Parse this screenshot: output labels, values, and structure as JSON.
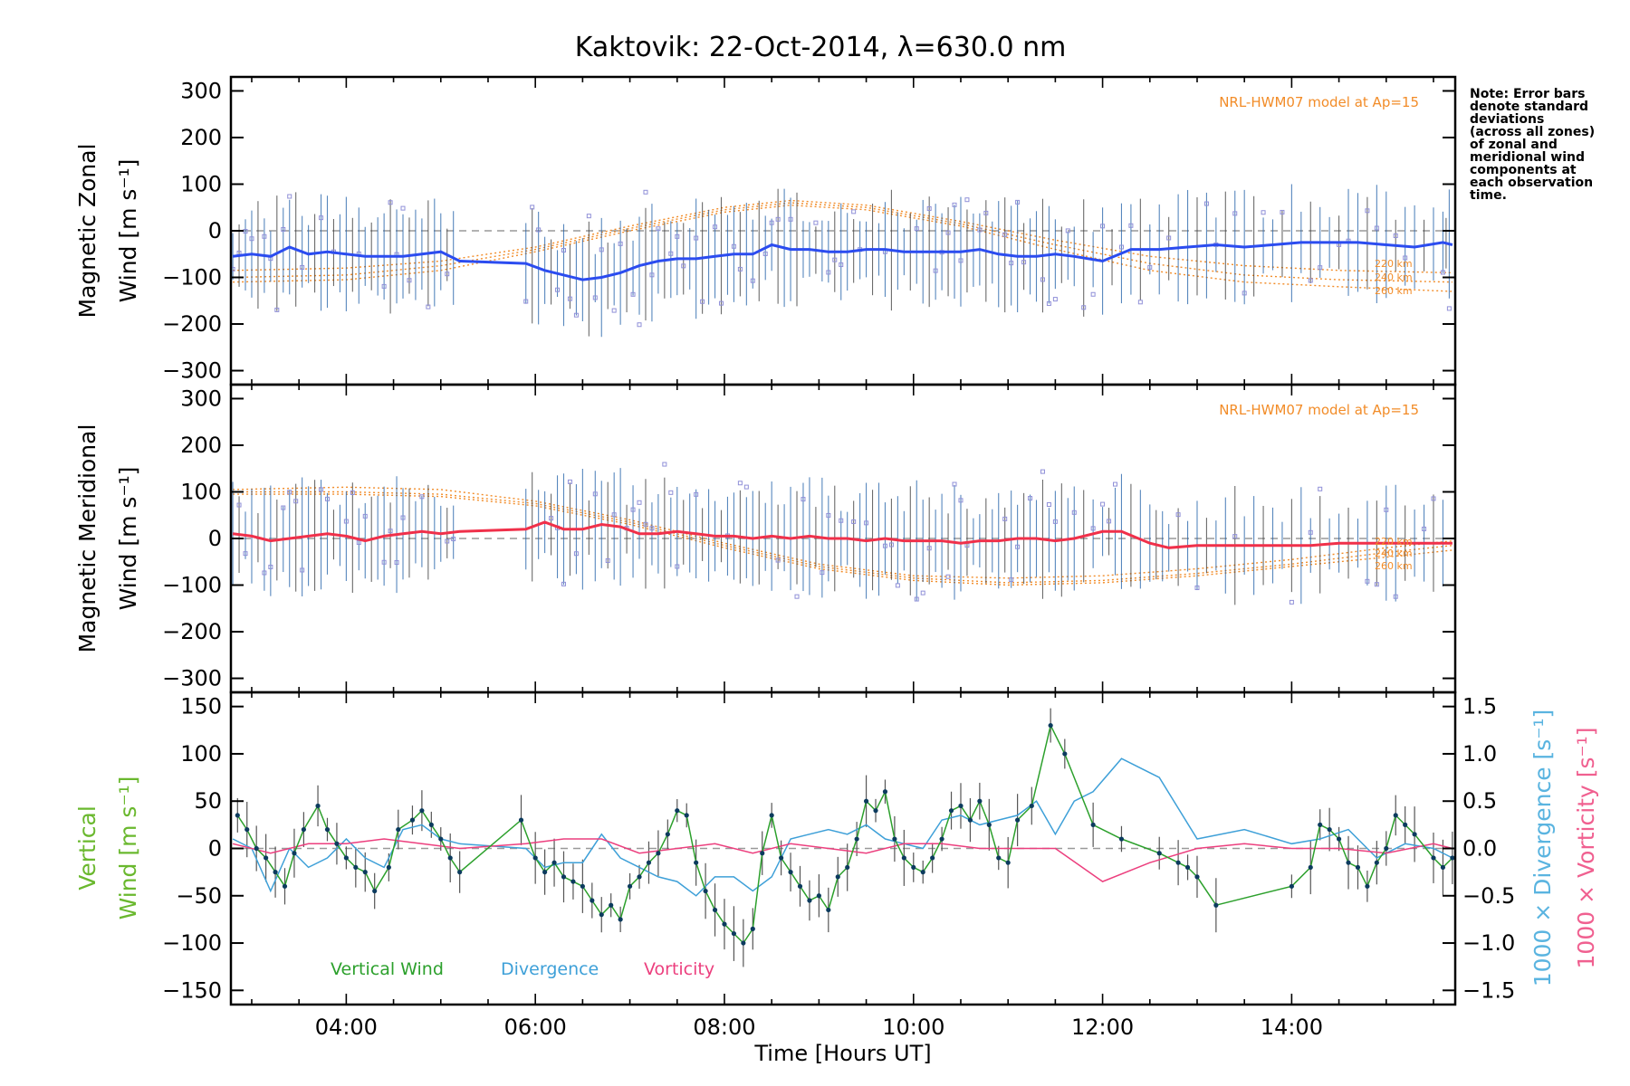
{
  "title": "Kaktovik: 22-Oct-2014, λ=630.0 nm",
  "note": [
    "Note: Error bars",
    "denote standard",
    "deviations",
    "(across all zones)",
    "of zonal and",
    "meridional wind",
    "components at",
    "each observation",
    "time."
  ],
  "model_label": "NRL-HWM07 model at Ap=15",
  "alt_labels": [
    "220 km",
    "240 km",
    "260 km"
  ],
  "xlabel": "Time [Hours UT]",
  "x_ticks": [
    "04:00",
    "06:00",
    "08:00",
    "10:00",
    "12:00",
    "14:00"
  ],
  "colors": {
    "zonal": "#2b4cf0",
    "meridional": "#f0304a",
    "vertical": "#2ca02c",
    "divergence": "#3ea0d8",
    "vorticity": "#ec3f7e",
    "model": "#f28c28",
    "scatter": "#9090d8",
    "axis_vertical": "#6ab82e",
    "axis_divergence": "#5ab4e0",
    "axis_vorticity": "#f06090"
  },
  "chart_data": [
    {
      "type": "line",
      "panel": "zonal",
      "ylabel": [
        "Magnetic Zonal",
        "Wind [m s⁻¹]"
      ],
      "ylim": [
        -330,
        330
      ],
      "xlim_hours": [
        2.78,
        15.73
      ],
      "y_ticks": [
        "300",
        "200",
        "100",
        "0",
        "−100",
        "−200",
        "−300"
      ],
      "y_tick_values": [
        300,
        200,
        100,
        0,
        -100,
        -200,
        -300
      ],
      "series": [
        {
          "name": "",
          "x": [
            2.8,
            3.0,
            3.2,
            3.4,
            3.6,
            3.8,
            4.0,
            4.2,
            4.4,
            4.6,
            4.8,
            5.0,
            5.2,
            5.9,
            6.1,
            6.3,
            6.5,
            6.7,
            6.9,
            7.1,
            7.3,
            7.5,
            7.7,
            7.9,
            8.1,
            8.3,
            8.5,
            8.7,
            8.9,
            9.1,
            9.3,
            9.5,
            9.7,
            9.9,
            10.1,
            10.3,
            10.5,
            10.7,
            10.9,
            11.1,
            11.3,
            11.5,
            11.7,
            12.0,
            12.3,
            12.6,
            12.9,
            13.2,
            13.5,
            13.8,
            14.1,
            14.4,
            14.7,
            15.0,
            15.3,
            15.6,
            15.7
          ],
          "y": [
            -55,
            -50,
            -55,
            -35,
            -50,
            -45,
            -50,
            -55,
            -55,
            -55,
            -50,
            -45,
            -65,
            -70,
            -85,
            -95,
            -105,
            -100,
            -90,
            -75,
            -65,
            -60,
            -60,
            -55,
            -50,
            -50,
            -30,
            -40,
            -40,
            -45,
            -45,
            -40,
            -40,
            -45,
            -45,
            -45,
            -45,
            -40,
            -50,
            -55,
            -55,
            -50,
            -55,
            -65,
            -40,
            -40,
            -35,
            -30,
            -35,
            -30,
            -25,
            -25,
            -25,
            -30,
            -35,
            -25,
            -30
          ]
        }
      ],
      "model_curves": [
        {
          "name": "220 km",
          "x": [
            2.8,
            4.0,
            5.0,
            6.0,
            7.0,
            8.0,
            8.7,
            9.5,
            10.5,
            11.5,
            12.5,
            13.5,
            14.5,
            15.7
          ],
          "y": [
            -85,
            -80,
            -65,
            -35,
            10,
            50,
            65,
            55,
            20,
            -20,
            -55,
            -75,
            -85,
            -90
          ]
        },
        {
          "name": "240 km",
          "x": [
            2.8,
            4.0,
            5.0,
            6.0,
            7.0,
            8.0,
            8.7,
            9.5,
            10.5,
            11.5,
            12.5,
            13.5,
            14.5,
            15.7
          ],
          "y": [
            -100,
            -95,
            -75,
            -40,
            5,
            45,
            60,
            50,
            15,
            -30,
            -70,
            -95,
            -105,
            -110
          ]
        },
        {
          "name": "260 km",
          "x": [
            2.8,
            4.0,
            5.0,
            6.0,
            7.0,
            8.0,
            8.7,
            9.5,
            10.5,
            11.5,
            12.5,
            13.5,
            14.5,
            15.7
          ],
          "y": [
            -110,
            -105,
            -85,
            -45,
            0,
            40,
            55,
            45,
            10,
            -40,
            -85,
            -110,
            -120,
            -130
          ]
        }
      ]
    },
    {
      "type": "line",
      "panel": "meridional",
      "ylabel": [
        "Magnetic Meridional",
        "Wind [m s⁻¹]"
      ],
      "ylim": [
        -330,
        330
      ],
      "xlim_hours": [
        2.78,
        15.73
      ],
      "y_ticks": [
        "300",
        "200",
        "100",
        "0",
        "−100",
        "−200",
        "−300"
      ],
      "y_tick_values": [
        300,
        200,
        100,
        0,
        -100,
        -200,
        -300
      ],
      "series": [
        {
          "name": "",
          "x": [
            2.8,
            3.0,
            3.2,
            3.4,
            3.6,
            3.8,
            4.0,
            4.2,
            4.4,
            4.6,
            4.8,
            5.0,
            5.2,
            5.9,
            6.1,
            6.3,
            6.5,
            6.7,
            6.9,
            7.1,
            7.3,
            7.5,
            7.7,
            7.9,
            8.1,
            8.3,
            8.5,
            8.7,
            8.9,
            9.1,
            9.3,
            9.5,
            9.7,
            9.9,
            10.1,
            10.3,
            10.5,
            10.7,
            10.9,
            11.1,
            11.3,
            11.5,
            11.7,
            12.0,
            12.2,
            12.5,
            12.7,
            13.0,
            13.3,
            13.6,
            13.9,
            14.2,
            14.5,
            14.8,
            15.1,
            15.4,
            15.7
          ],
          "y": [
            10,
            5,
            -5,
            0,
            5,
            10,
            5,
            -5,
            5,
            10,
            15,
            10,
            15,
            20,
            35,
            20,
            20,
            30,
            25,
            10,
            10,
            15,
            10,
            5,
            5,
            0,
            5,
            0,
            5,
            0,
            0,
            -5,
            0,
            -5,
            -5,
            -5,
            -10,
            -5,
            -5,
            0,
            0,
            -5,
            0,
            15,
            15,
            -10,
            -20,
            -15,
            -15,
            -15,
            -15,
            -15,
            -10,
            -10,
            -10,
            -10,
            -10
          ]
        }
      ],
      "model_curves": [
        {
          "name": "220 km",
          "x": [
            2.8,
            4.0,
            5.0,
            6.0,
            7.0,
            8.0,
            9.0,
            10.0,
            11.0,
            12.0,
            13.0,
            14.0,
            15.0,
            15.7
          ],
          "y": [
            105,
            110,
            105,
            80,
            40,
            -10,
            -55,
            -80,
            -85,
            -80,
            -65,
            -45,
            -20,
            -5
          ]
        },
        {
          "name": "240 km",
          "x": [
            2.8,
            4.0,
            5.0,
            6.0,
            7.0,
            8.0,
            9.0,
            10.0,
            11.0,
            12.0,
            13.0,
            14.0,
            15.0,
            15.7
          ],
          "y": [
            100,
            100,
            95,
            75,
            35,
            -15,
            -60,
            -85,
            -95,
            -90,
            -75,
            -55,
            -30,
            -15
          ]
        },
        {
          "name": "260 km",
          "x": [
            2.8,
            4.0,
            5.0,
            6.0,
            7.0,
            8.0,
            9.0,
            10.0,
            11.0,
            12.0,
            13.0,
            14.0,
            15.0,
            15.7
          ],
          "y": [
            95,
            95,
            90,
            70,
            30,
            -20,
            -65,
            -90,
            -100,
            -95,
            -80,
            -60,
            -40,
            -25
          ]
        }
      ]
    },
    {
      "type": "line",
      "panel": "vertical",
      "ylabel": [
        "Vertical",
        "Wind [m s⁻¹]"
      ],
      "ylim": [
        -165,
        165
      ],
      "xlim_hours": [
        2.78,
        15.73
      ],
      "y_ticks": [
        "150",
        "100",
        "50",
        "0",
        "−50",
        "−100",
        "−150"
      ],
      "y_tick_values": [
        150,
        100,
        50,
        0,
        -50,
        -100,
        -150
      ],
      "y2label": [
        "1000 × Divergence [s⁻¹]",
        "1000 × Vorticity [s⁻¹]"
      ],
      "y2lim": [
        -1.65,
        1.65
      ],
      "y2_ticks": [
        "1.5",
        "1.0",
        "0.5",
        "0.0",
        "−0.5",
        "−1.0",
        "−1.5"
      ],
      "y2_tick_values": [
        1.5,
        1.0,
        0.5,
        0.0,
        -0.5,
        -1.0,
        -1.5
      ],
      "legend": [
        "Vertical Wind",
        "Divergence",
        "Vorticity"
      ],
      "series": [
        {
          "name": "Vertical Wind",
          "x": [
            2.85,
            2.95,
            3.05,
            3.15,
            3.25,
            3.35,
            3.45,
            3.55,
            3.7,
            3.8,
            3.9,
            4.0,
            4.1,
            4.2,
            4.3,
            4.45,
            4.55,
            4.7,
            4.8,
            4.9,
            5.0,
            5.1,
            5.2,
            5.85,
            6.0,
            6.1,
            6.2,
            6.3,
            6.4,
            6.5,
            6.6,
            6.7,
            6.8,
            6.9,
            7.0,
            7.1,
            7.2,
            7.3,
            7.4,
            7.5,
            7.6,
            7.7,
            7.8,
            7.9,
            8.0,
            8.1,
            8.2,
            8.3,
            8.4,
            8.5,
            8.6,
            8.7,
            8.8,
            8.9,
            9.0,
            9.1,
            9.2,
            9.3,
            9.4,
            9.5,
            9.6,
            9.7,
            9.8,
            9.9,
            10.0,
            10.1,
            10.2,
            10.3,
            10.4,
            10.5,
            10.6,
            10.7,
            10.8,
            10.9,
            11.0,
            11.1,
            11.25,
            11.45,
            11.6,
            11.9,
            12.2,
            12.6,
            12.8,
            12.9,
            13.0,
            13.2,
            14.0,
            14.2,
            14.3,
            14.4,
            14.5,
            14.6,
            14.7,
            14.8,
            14.9,
            15.0,
            15.1,
            15.2,
            15.3,
            15.5,
            15.6,
            15.7
          ],
          "y": [
            35,
            20,
            0,
            -10,
            -25,
            -40,
            -5,
            20,
            45,
            20,
            5,
            -10,
            -20,
            -25,
            -45,
            -20,
            20,
            30,
            40,
            25,
            10,
            -10,
            -25,
            30,
            -10,
            -25,
            -15,
            -30,
            -35,
            -40,
            -55,
            -70,
            -60,
            -75,
            -40,
            -30,
            -15,
            -5,
            15,
            40,
            35,
            -15,
            -45,
            -65,
            -80,
            -90,
            -100,
            -85,
            -5,
            35,
            -10,
            -25,
            -40,
            -55,
            -50,
            -65,
            -30,
            -20,
            10,
            50,
            40,
            60,
            10,
            -10,
            -20,
            -25,
            -10,
            10,
            40,
            45,
            30,
            50,
            25,
            -10,
            -15,
            30,
            45,
            130,
            100,
            25,
            10,
            -5,
            -15,
            -20,
            -30,
            -60,
            -40,
            -20,
            25,
            20,
            10,
            -15,
            -20,
            -40,
            -15,
            0,
            35,
            25,
            15,
            -10,
            -20,
            -10
          ]
        },
        {
          "name": "Divergence",
          "x": [
            2.8,
            3.0,
            3.2,
            3.4,
            3.6,
            3.8,
            4.0,
            4.2,
            4.4,
            4.6,
            4.8,
            5.0,
            5.2,
            5.9,
            6.1,
            6.3,
            6.5,
            6.7,
            6.9,
            7.1,
            7.3,
            7.5,
            7.7,
            7.9,
            8.1,
            8.3,
            8.5,
            8.7,
            8.9,
            9.1,
            9.3,
            9.5,
            9.7,
            9.9,
            10.1,
            10.3,
            10.5,
            10.7,
            10.9,
            11.1,
            11.3,
            11.5,
            11.7,
            11.9,
            12.2,
            12.6,
            13.0,
            13.5,
            14.0,
            14.3,
            14.6,
            14.9,
            15.2,
            15.5,
            15.7
          ],
          "y": [
            0.1,
            0.0,
            -0.45,
            0.0,
            -0.2,
            -0.1,
            0.1,
            -0.1,
            -0.2,
            0.2,
            0.25,
            0.1,
            0.05,
            0.0,
            -0.2,
            -0.15,
            -0.15,
            0.15,
            -0.1,
            -0.2,
            -0.3,
            -0.35,
            -0.5,
            -0.3,
            -0.3,
            -0.45,
            -0.3,
            0.1,
            0.15,
            0.2,
            0.15,
            0.25,
            0.1,
            0.05,
            0.0,
            0.3,
            0.35,
            0.25,
            0.3,
            0.35,
            0.5,
            0.15,
            0.5,
            0.6,
            0.95,
            0.75,
            0.1,
            0.2,
            0.05,
            0.1,
            0.2,
            -0.1,
            0.05,
            0.0,
            -0.1
          ]
        },
        {
          "name": "Vorticity",
          "x": [
            2.8,
            3.2,
            3.6,
            4.0,
            4.4,
            4.8,
            5.2,
            5.9,
            6.3,
            6.7,
            7.1,
            7.5,
            7.9,
            8.3,
            8.7,
            9.1,
            9.5,
            9.9,
            10.3,
            10.7,
            11.1,
            11.5,
            12.0,
            12.5,
            13.0,
            13.5,
            14.0,
            14.5,
            15.0,
            15.5,
            15.7
          ],
          "y": [
            0.05,
            -0.05,
            0.05,
            0.05,
            0.1,
            0.05,
            0.0,
            0.05,
            0.1,
            0.1,
            -0.05,
            0.0,
            0.05,
            -0.05,
            0.05,
            0.0,
            -0.05,
            0.05,
            0.05,
            0.0,
            0.0,
            0.0,
            -0.35,
            -0.15,
            0.0,
            0.05,
            0.0,
            0.0,
            -0.05,
            0.05,
            0.0
          ]
        }
      ]
    }
  ]
}
